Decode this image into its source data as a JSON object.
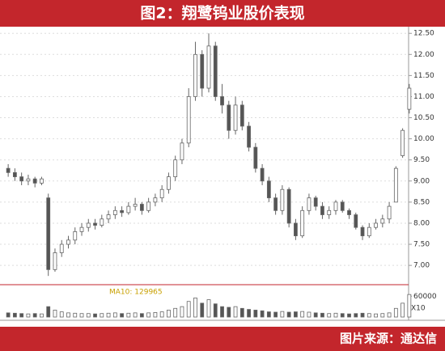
{
  "chart_data": {
    "type": "candlestick",
    "title": "图2：翔鹭钨业股价表现",
    "source": "图片来源：通达信",
    "candles": [
      [
        9.3,
        9.4,
        9.1,
        9.2
      ],
      [
        9.2,
        9.3,
        9.0,
        9.1
      ],
      [
        9.1,
        9.2,
        8.9,
        9.0
      ],
      [
        9.0,
        9.15,
        8.9,
        9.05
      ],
      [
        9.05,
        9.1,
        8.85,
        8.95
      ],
      [
        8.95,
        9.1,
        8.9,
        9.05
      ],
      [
        8.6,
        8.7,
        6.75,
        6.9
      ],
      [
        6.9,
        7.4,
        6.85,
        7.3
      ],
      [
        7.3,
        7.6,
        7.2,
        7.5
      ],
      [
        7.5,
        7.7,
        7.4,
        7.6
      ],
      [
        7.6,
        7.9,
        7.5,
        7.8
      ],
      [
        7.8,
        8.0,
        7.7,
        7.9
      ],
      [
        7.9,
        8.1,
        7.8,
        8.0
      ],
      [
        8.0,
        8.1,
        7.85,
        7.95
      ],
      [
        7.95,
        8.2,
        7.9,
        8.1
      ],
      [
        8.1,
        8.3,
        8.0,
        8.2
      ],
      [
        8.2,
        8.4,
        8.1,
        8.3
      ],
      [
        8.3,
        8.4,
        8.15,
        8.25
      ],
      [
        8.25,
        8.5,
        8.2,
        8.4
      ],
      [
        8.4,
        8.6,
        8.3,
        8.45
      ],
      [
        8.45,
        8.5,
        8.2,
        8.3
      ],
      [
        8.3,
        8.6,
        8.25,
        8.5
      ],
      [
        8.5,
        8.7,
        8.4,
        8.6
      ],
      [
        8.6,
        8.9,
        8.5,
        8.8
      ],
      [
        8.8,
        9.2,
        8.7,
        9.1
      ],
      [
        9.1,
        9.6,
        9.0,
        9.5
      ],
      [
        9.5,
        10.0,
        9.4,
        9.9
      ],
      [
        9.9,
        11.2,
        9.8,
        11.0
      ],
      [
        11.0,
        12.3,
        10.9,
        12.0
      ],
      [
        12.0,
        12.1,
        11.0,
        11.2
      ],
      [
        11.2,
        12.5,
        11.1,
        12.2
      ],
      [
        12.2,
        12.3,
        10.9,
        11.0
      ],
      [
        11.0,
        11.3,
        10.6,
        10.8
      ],
      [
        10.8,
        10.9,
        10.0,
        10.2
      ],
      [
        10.2,
        11.0,
        10.1,
        10.8
      ],
      [
        10.8,
        10.9,
        10.2,
        10.3
      ],
      [
        10.3,
        10.4,
        9.7,
        9.8
      ],
      [
        9.8,
        9.9,
        9.2,
        9.3
      ],
      [
        9.3,
        9.4,
        8.9,
        9.0
      ],
      [
        9.0,
        9.1,
        8.5,
        8.6
      ],
      [
        8.6,
        8.7,
        8.2,
        8.3
      ],
      [
        8.3,
        8.9,
        8.2,
        8.8
      ],
      [
        8.8,
        8.85,
        7.9,
        8.0
      ],
      [
        8.0,
        8.1,
        7.6,
        7.7
      ],
      [
        7.7,
        8.4,
        7.65,
        8.3
      ],
      [
        8.3,
        8.7,
        8.2,
        8.6
      ],
      [
        8.6,
        8.65,
        8.3,
        8.4
      ],
      [
        8.4,
        8.5,
        8.1,
        8.2
      ],
      [
        8.2,
        8.4,
        8.1,
        8.3
      ],
      [
        8.3,
        8.55,
        8.2,
        8.5
      ],
      [
        8.5,
        8.55,
        8.25,
        8.3
      ],
      [
        8.3,
        8.35,
        8.1,
        8.2
      ],
      [
        8.2,
        8.25,
        7.85,
        7.9
      ],
      [
        7.9,
        7.95,
        7.6,
        7.7
      ],
      [
        7.7,
        8.0,
        7.65,
        7.9
      ],
      [
        7.9,
        8.1,
        7.85,
        8.0
      ],
      [
        8.0,
        8.2,
        7.9,
        8.1
      ],
      [
        8.1,
        8.5,
        8.0,
        8.4
      ],
      [
        8.5,
        9.35,
        8.5,
        9.3
      ],
      [
        9.6,
        10.25,
        9.55,
        10.2
      ],
      [
        10.7,
        11.3,
        10.6,
        11.2
      ]
    ],
    "volume": [
      12000,
      11000,
      10000,
      9000,
      10000,
      9000,
      30000,
      20000,
      15000,
      12000,
      11000,
      10000,
      10000,
      9000,
      10000,
      11000,
      12000,
      10000,
      11000,
      12000,
      10000,
      12000,
      13000,
      15000,
      20000,
      25000,
      30000,
      45000,
      55000,
      40000,
      50000,
      38000,
      30000,
      28000,
      30000,
      25000,
      22000,
      20000,
      18000,
      15000,
      14000,
      16000,
      14000,
      15000,
      16000,
      14000,
      12000,
      11000,
      10000,
      11000,
      10000,
      9000,
      10000,
      11000,
      10000,
      9000,
      10000,
      12000,
      25000,
      40000,
      65000
    ],
    "ylim": [
      6.6,
      12.6
    ],
    "yticks": [
      {
        "value": 7,
        "label": "7.00"
      },
      {
        "value": 7.5,
        "label": "7.50"
      },
      {
        "value": 8,
        "label": "8.00"
      },
      {
        "value": 8.5,
        "label": "8.50"
      },
      {
        "value": 9,
        "label": "9.00"
      },
      {
        "value": 9.5,
        "label": "9.50"
      },
      {
        "value": 10,
        "label": "10.00"
      },
      {
        "value": 10.5,
        "label": "10.50"
      },
      {
        "value": 11,
        "label": "11.00"
      },
      {
        "value": 11.5,
        "label": "11.50"
      },
      {
        "value": 12,
        "label": "12.00"
      },
      {
        "value": 12.5,
        "label": "12.50"
      }
    ],
    "volume_ylim": [
      0,
      70000
    ],
    "volume_yticks": [
      60000
    ],
    "volume_unit_label": "X10",
    "ma_label": "MA10: 129965",
    "up_color": "#ffffff",
    "down_color": "#555555",
    "edge_color": "#666666",
    "grid": true
  }
}
